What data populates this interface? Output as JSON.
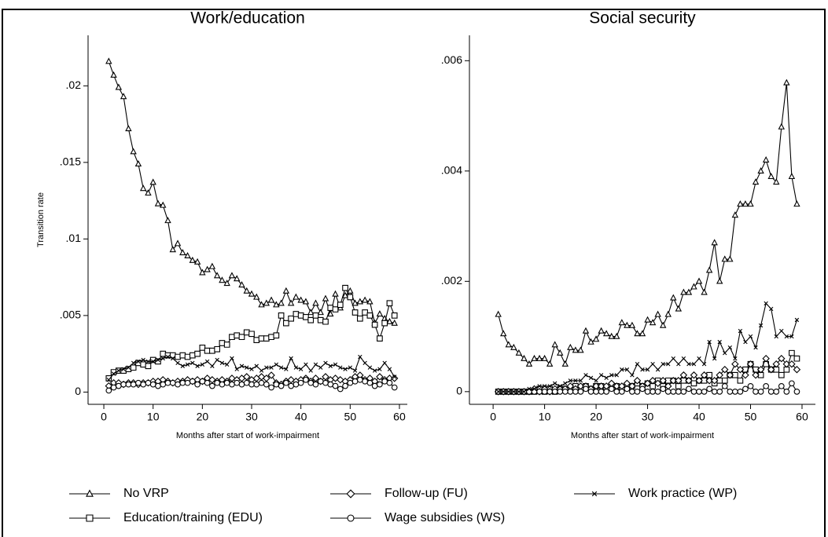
{
  "chart_data": [
    {
      "type": "line",
      "title": "Work/education",
      "x_label": "Months after start of work-impairment",
      "y_label": "Transition rate",
      "x": [
        1,
        2,
        3,
        4,
        5,
        6,
        7,
        8,
        9,
        10,
        11,
        12,
        13,
        14,
        15,
        16,
        17,
        18,
        19,
        20,
        21,
        22,
        23,
        24,
        25,
        26,
        27,
        28,
        29,
        30,
        31,
        32,
        33,
        34,
        35,
        36,
        37,
        38,
        39,
        40,
        41,
        42,
        43,
        44,
        45,
        46,
        47,
        48,
        49,
        50,
        51,
        52,
        53,
        54,
        55,
        56,
        57,
        58,
        59
      ],
      "xlim": [
        -3.2,
        61.6
      ],
      "xticks": [
        0,
        10,
        20,
        30,
        40,
        50,
        60
      ],
      "ylim": [
        -0.0008,
        0.0233
      ],
      "yticks": [
        0,
        {
          "value": 0.005,
          "label": ".005"
        },
        {
          "value": 0.01,
          "label": ".01"
        },
        {
          "value": 0.015,
          "label": ".015"
        },
        {
          "value": 0.02,
          "label": ".02"
        }
      ],
      "series": [
        {
          "name": "No VRP",
          "color": "#000000",
          "marker": "triangle",
          "values": [
            0.0216,
            0.0207,
            0.0199,
            0.0193,
            0.0172,
            0.0157,
            0.0149,
            0.0133,
            0.013,
            0.0137,
            0.0123,
            0.0122,
            0.0112,
            0.0093,
            0.0097,
            0.0091,
            0.0089,
            0.0086,
            0.0085,
            0.0078,
            0.008,
            0.0082,
            0.0076,
            0.0073,
            0.0071,
            0.0076,
            0.0074,
            0.007,
            0.0066,
            0.0064,
            0.0062,
            0.0057,
            0.0058,
            0.006,
            0.0057,
            0.0058,
            0.0066,
            0.0058,
            0.0062,
            0.006,
            0.0059,
            0.0052,
            0.0058,
            0.0052,
            0.0061,
            0.0051,
            0.0064,
            0.0055,
            0.0063,
            0.0066,
            0.0058,
            0.0059,
            0.006,
            0.0059,
            0.0045,
            0.0051,
            0.0048,
            0.0046,
            0.0045
          ]
        },
        {
          "name": "Education/training (EDU)",
          "color": "#000000",
          "marker": "square",
          "values": [
            0.0009,
            0.0013,
            0.0014,
            0.0014,
            0.0015,
            0.0016,
            0.0019,
            0.0018,
            0.0017,
            0.0021,
            0.002,
            0.0025,
            0.0024,
            0.0024,
            0.0023,
            0.0024,
            0.0023,
            0.0024,
            0.0025,
            0.0029,
            0.0027,
            0.0027,
            0.0028,
            0.0032,
            0.0031,
            0.0036,
            0.0037,
            0.0036,
            0.0039,
            0.0038,
            0.0034,
            0.0035,
            0.0035,
            0.0036,
            0.0037,
            0.005,
            0.0045,
            0.0048,
            0.0051,
            0.005,
            0.0049,
            0.0047,
            0.005,
            0.0047,
            0.0046,
            0.0055,
            0.0054,
            0.0057,
            0.0068,
            0.0062,
            0.0052,
            0.0048,
            0.0052,
            0.005,
            0.0044,
            0.0035,
            0.0045,
            0.0058,
            0.005
          ]
        },
        {
          "name": "Follow-up (FU)",
          "color": "#000000",
          "marker": "diamond",
          "values": [
            0.0004,
            0.0006,
            0.0006,
            0.0005,
            0.0006,
            0.0006,
            0.0005,
            0.0006,
            0.0006,
            0.0007,
            0.0007,
            0.0008,
            0.0007,
            0.0006,
            0.0007,
            0.0007,
            0.0008,
            0.0007,
            0.0008,
            0.0007,
            0.0009,
            0.0008,
            0.0007,
            0.0008,
            0.0007,
            0.0009,
            0.0008,
            0.0009,
            0.001,
            0.0008,
            0.0009,
            0.001,
            0.0009,
            0.0011,
            0.0006,
            0.0005,
            0.0007,
            0.0008,
            0.0007,
            0.0008,
            0.0009,
            0.0007,
            0.0009,
            0.0007,
            0.001,
            0.0008,
            0.0009,
            0.0008,
            0.0007,
            0.0008,
            0.001,
            0.0011,
            0.0008,
            0.0009,
            0.0007,
            0.001,
            0.0008,
            0.0009,
            0.0009
          ]
        },
        {
          "name": "Wage subsidies (WS)",
          "color": "#000000",
          "marker": "circle",
          "values": [
            0.0001,
            0.0003,
            0.0004,
            0.0005,
            0.0005,
            0.0005,
            0.0006,
            0.0005,
            0.0006,
            0.0005,
            0.0004,
            0.0005,
            0.0006,
            0.0006,
            0.0005,
            0.0006,
            0.0006,
            0.0007,
            0.0005,
            0.0007,
            0.0006,
            0.0004,
            0.0006,
            0.0005,
            0.0006,
            0.0005,
            0.0006,
            0.0005,
            0.0006,
            0.0005,
            0.0005,
            0.0006,
            0.0005,
            0.0003,
            0.0005,
            0.0004,
            0.0006,
            0.0004,
            0.0005,
            0.0006,
            0.0008,
            0.0006,
            0.0005,
            0.0007,
            0.0006,
            0.0005,
            0.0004,
            0.0002,
            0.0004,
            0.0006,
            0.0007,
            0.0008,
            0.0007,
            0.0006,
            0.0004,
            0.0005,
            0.0007,
            0.0006,
            0.0003
          ]
        },
        {
          "name": "Work practice (WP)",
          "color": "#000000",
          "marker": "x",
          "values": [
            0.0008,
            0.0012,
            0.0014,
            0.0015,
            0.0016,
            0.0019,
            0.002,
            0.0021,
            0.002,
            0.002,
            0.0021,
            0.0022,
            0.0023,
            0.0022,
            0.0019,
            0.0017,
            0.0018,
            0.0019,
            0.0017,
            0.0018,
            0.002,
            0.0017,
            0.0021,
            0.0019,
            0.0018,
            0.0022,
            0.0015,
            0.0017,
            0.0016,
            0.0015,
            0.0017,
            0.0014,
            0.0016,
            0.0016,
            0.0018,
            0.0016,
            0.0015,
            0.0022,
            0.0016,
            0.0015,
            0.0018,
            0.0014,
            0.0018,
            0.0016,
            0.0019,
            0.0017,
            0.0018,
            0.0016,
            0.0015,
            0.0016,
            0.0014,
            0.0023,
            0.0019,
            0.0016,
            0.0014,
            0.0015,
            0.0019,
            0.0015,
            0.001
          ]
        }
      ]
    },
    {
      "type": "line",
      "title": "Social security",
      "x_label": "Months after start of work-impairment",
      "x": [
        1,
        2,
        3,
        4,
        5,
        6,
        7,
        8,
        9,
        10,
        11,
        12,
        13,
        14,
        15,
        16,
        17,
        18,
        19,
        20,
        21,
        22,
        23,
        24,
        25,
        26,
        27,
        28,
        29,
        30,
        31,
        32,
        33,
        34,
        35,
        36,
        37,
        38,
        39,
        40,
        41,
        42,
        43,
        44,
        45,
        46,
        47,
        48,
        49,
        50,
        51,
        52,
        53,
        54,
        55,
        56,
        57,
        58,
        59
      ],
      "xlim": [
        -4.6,
        62.6
      ],
      "xticks": [
        0,
        10,
        20,
        30,
        40,
        50,
        60
      ],
      "ylim": [
        -0.00023,
        0.00646
      ],
      "yticks": [
        0,
        {
          "value": 0.002,
          "label": ".002"
        },
        {
          "value": 0.004,
          "label": ".004"
        },
        {
          "value": 0.006,
          "label": ".006"
        }
      ],
      "series": [
        {
          "name": "No VRP",
          "color": "#000000",
          "marker": "triangle",
          "values": [
            0.0014,
            0.00105,
            0.00085,
            0.0008,
            0.0007,
            0.0006,
            0.0005,
            0.0006,
            0.0006,
            0.0006,
            0.0005,
            0.00085,
            0.0007,
            0.0005,
            0.0008,
            0.00075,
            0.00075,
            0.0011,
            0.0009,
            0.00095,
            0.0011,
            0.00105,
            0.001,
            0.001,
            0.00125,
            0.0012,
            0.0012,
            0.00105,
            0.00105,
            0.0013,
            0.00125,
            0.0014,
            0.0012,
            0.0014,
            0.0017,
            0.0015,
            0.0018,
            0.0018,
            0.0019,
            0.002,
            0.0018,
            0.0022,
            0.0027,
            0.002,
            0.0024,
            0.0024,
            0.0032,
            0.0034,
            0.0034,
            0.0034,
            0.0038,
            0.004,
            0.0042,
            0.0039,
            0.0038,
            0.0048,
            0.0056,
            0.0039,
            0.0034
          ]
        },
        {
          "name": "Education/training (EDU)",
          "color": "#000000",
          "marker": "square",
          "values": [
            0,
            0,
            0,
            0,
            0,
            0,
            0,
            0,
            5e-05,
            0,
            5e-05,
            0,
            5e-05,
            5e-05,
            5e-05,
            0.0001,
            5e-05,
            0.0001,
            5e-05,
            0.0001,
            0.0001,
            5e-05,
            0.0001,
            0.0001,
            5e-05,
            0.0001,
            0.0001,
            0.00015,
            0.0001,
            0.00015,
            0.0001,
            0.0002,
            0.0001,
            0.0002,
            0.0002,
            0.0001,
            0.0002,
            0.0002,
            0.00015,
            0.0002,
            0.0002,
            0.0003,
            0.00015,
            0.0002,
            0.0002,
            0.0003,
            0.0003,
            0.0002,
            0.0004,
            0.0005,
            0.0004,
            0.0003,
            0.0005,
            0.0004,
            0.0004,
            0.0003,
            0.0004,
            0.0007,
            0.0006
          ]
        },
        {
          "name": "Follow-up (FU)",
          "color": "#000000",
          "marker": "diamond",
          "values": [
            0,
            0,
            0,
            0,
            0,
            0,
            0,
            5e-05,
            0,
            5e-05,
            0,
            5e-05,
            5e-05,
            5e-05,
            0.0001,
            5e-05,
            0.0001,
            0.0001,
            5e-05,
            0.0001,
            0.0001,
            0.0001,
            0.00015,
            0.0001,
            0.0001,
            0.00015,
            0.0001,
            0.0002,
            0.0001,
            0.00015,
            0.0002,
            0.00015,
            0.0002,
            0.0001,
            0.0002,
            0.0002,
            0.0003,
            0.0002,
            0.0003,
            0.0002,
            0.0003,
            0.0002,
            0.0002,
            0.0003,
            0.0004,
            0.0003,
            0.0005,
            0.0004,
            0.0003,
            0.0005,
            0.0003,
            0.0004,
            0.0006,
            0.0004,
            0.0005,
            0.0006,
            0.0005,
            0.0005,
            0.0004
          ]
        },
        {
          "name": "Wage subsidies (WS)",
          "color": "#000000",
          "marker": "circle",
          "values": [
            0,
            0,
            0,
            0,
            0,
            0,
            0,
            0,
            0,
            0,
            0,
            0,
            0,
            0,
            0,
            0,
            0,
            5e-05,
            0,
            0,
            0,
            0,
            5e-05,
            0,
            0,
            5e-05,
            0,
            0,
            5e-05,
            0,
            0,
            0,
            5e-05,
            0,
            0,
            0,
            0,
            5e-05,
            0,
            0,
            0,
            5e-05,
            0,
            0,
            0.0001,
            0,
            0,
            0,
            5e-05,
            0.0001,
            0,
            0,
            0.0001,
            0,
            0,
            0.0001,
            0,
            0.00015,
            0
          ]
        },
        {
          "name": "Work practice (WP)",
          "color": "#000000",
          "marker": "x",
          "values": [
            0,
            0,
            0,
            0,
            0,
            0,
            5e-05,
            5e-05,
            0.0001,
            0.0001,
            0.0001,
            0.00015,
            0.0001,
            0.00015,
            0.0002,
            0.0002,
            0.0002,
            0.0003,
            0.00025,
            0.0002,
            0.0003,
            0.00025,
            0.0003,
            0.0003,
            0.0004,
            0.0004,
            0.0003,
            0.0005,
            0.0004,
            0.0004,
            0.0005,
            0.0004,
            0.0005,
            0.0005,
            0.0006,
            0.0005,
            0.0006,
            0.0005,
            0.0005,
            0.0006,
            0.0005,
            0.0009,
            0.0006,
            0.0009,
            0.0007,
            0.0008,
            0.0006,
            0.0011,
            0.0009,
            0.001,
            0.0008,
            0.0012,
            0.0016,
            0.0015,
            0.001,
            0.0011,
            0.001,
            0.001,
            0.0013
          ]
        }
      ]
    }
  ]
}
